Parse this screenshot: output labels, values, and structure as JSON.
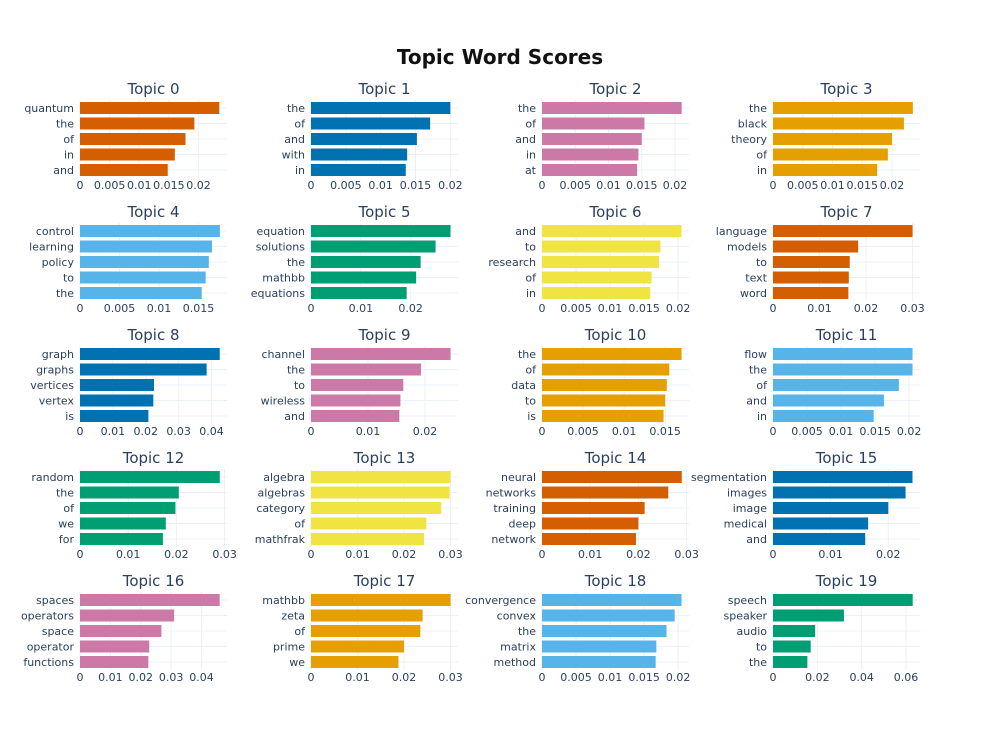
{
  "chart_data": {
    "type": "bar",
    "orientation": "horizontal",
    "title": "Topic Word Scores",
    "grid": true,
    "subplots": [
      {
        "title": "Topic 0",
        "color": "#D55E00",
        "categories": [
          "quantum",
          "the",
          "of",
          "in",
          "and"
        ],
        "values": [
          0.0235,
          0.0193,
          0.0178,
          0.016,
          0.0148
        ],
        "ticks": [
          0,
          0.005,
          0.01,
          0.015,
          0.02
        ],
        "tick_labels": [
          "0",
          "0.005",
          "0.01",
          "0.015",
          "0.02"
        ],
        "xlim": [
          0,
          0.0248
        ]
      },
      {
        "title": "Topic 1",
        "color": "#0072B2",
        "categories": [
          "the",
          "of",
          "and",
          "with",
          "in"
        ],
        "values": [
          0.02,
          0.0171,
          0.0152,
          0.0138,
          0.0136
        ],
        "ticks": [
          0,
          0.005,
          0.01,
          0.015,
          0.02
        ],
        "tick_labels": [
          "0",
          "0.005",
          "0.01",
          "0.015",
          "0.02"
        ],
        "xlim": [
          0,
          0.0211
        ]
      },
      {
        "title": "Topic 2",
        "color": "#CC79A7",
        "categories": [
          "the",
          "of",
          "and",
          "in",
          "at"
        ],
        "values": [
          0.021,
          0.0154,
          0.015,
          0.0145,
          0.0143
        ],
        "ticks": [
          0,
          0.005,
          0.01,
          0.015,
          0.02
        ],
        "tick_labels": [
          "0",
          "0.005",
          "0.01",
          "0.015",
          "0.02"
        ],
        "xlim": [
          0,
          0.0221
        ]
      },
      {
        "title": "Topic 3",
        "color": "#E69F00",
        "categories": [
          "the",
          "black",
          "theory",
          "of",
          "in"
        ],
        "values": [
          0.0235,
          0.022,
          0.02,
          0.0193,
          0.0175
        ],
        "ticks": [
          0,
          0.005,
          0.01,
          0.015,
          0.02
        ],
        "tick_labels": [
          "0",
          "0.005",
          "0.01",
          "0.015",
          "0.02"
        ],
        "xlim": [
          0,
          0.0247
        ]
      },
      {
        "title": "Topic 4",
        "color": "#56B4E9",
        "categories": [
          "control",
          "learning",
          "policy",
          "to",
          "the"
        ],
        "values": [
          0.0177,
          0.0167,
          0.0163,
          0.0159,
          0.0154
        ],
        "ticks": [
          0,
          0.005,
          0.01,
          0.015
        ],
        "tick_labels": [
          "0",
          "0.005",
          "0.01",
          "0.015"
        ],
        "xlim": [
          0,
          0.0186
        ]
      },
      {
        "title": "Topic 5",
        "color": "#009E73",
        "categories": [
          "equation",
          "solutions",
          "the",
          "mathbb",
          "equations"
        ],
        "values": [
          0.028,
          0.025,
          0.022,
          0.0211,
          0.0192
        ],
        "ticks": [
          0,
          0.01,
          0.02
        ],
        "tick_labels": [
          "0",
          "0.01",
          "0.02"
        ],
        "xlim": [
          0,
          0.0295
        ]
      },
      {
        "title": "Topic 6",
        "color": "#F0E442",
        "categories": [
          "and",
          "to",
          "research",
          "of",
          "in"
        ],
        "values": [
          0.0205,
          0.0174,
          0.0172,
          0.0161,
          0.0159
        ],
        "ticks": [
          0,
          0.005,
          0.01,
          0.015,
          0.02
        ],
        "tick_labels": [
          "0",
          "0.005",
          "0.01",
          "0.015",
          "0.02"
        ],
        "xlim": [
          0,
          0.0216
        ]
      },
      {
        "title": "Topic 7",
        "color": "#D55E00",
        "categories": [
          "language",
          "models",
          "to",
          "text",
          "word"
        ],
        "values": [
          0.03,
          0.0183,
          0.0165,
          0.0163,
          0.0162
        ],
        "ticks": [
          0,
          0.01,
          0.02,
          0.03
        ],
        "tick_labels": [
          "0",
          "0.01",
          "0.02",
          "0.03"
        ],
        "xlim": [
          0,
          0.0316
        ]
      },
      {
        "title": "Topic 8",
        "color": "#0072B2",
        "categories": [
          "graph",
          "graphs",
          "vertices",
          "vertex",
          "is"
        ],
        "values": [
          0.0425,
          0.0385,
          0.0225,
          0.0223,
          0.0208
        ],
        "ticks": [
          0,
          0.01,
          0.02,
          0.03,
          0.04
        ],
        "tick_labels": [
          "0",
          "0.01",
          "0.02",
          "0.03",
          "0.04"
        ],
        "xlim": [
          0,
          0.0447
        ]
      },
      {
        "title": "Topic 9",
        "color": "#CC79A7",
        "categories": [
          "channel",
          "the",
          "to",
          "wireless",
          "and"
        ],
        "values": [
          0.0245,
          0.0193,
          0.0162,
          0.0157,
          0.0155
        ],
        "ticks": [
          0,
          0.01,
          0.02
        ],
        "tick_labels": [
          "0",
          "0.01",
          "0.02"
        ],
        "xlim": [
          0,
          0.0258
        ]
      },
      {
        "title": "Topic 10",
        "color": "#E69F00",
        "categories": [
          "the",
          "of",
          "data",
          "to",
          "is"
        ],
        "values": [
          0.017,
          0.0155,
          0.0152,
          0.015,
          0.0148
        ],
        "ticks": [
          0,
          0.005,
          0.01,
          0.015
        ],
        "tick_labels": [
          "0",
          "0.005",
          "0.01",
          "0.015"
        ],
        "xlim": [
          0,
          0.0179
        ]
      },
      {
        "title": "Topic 11",
        "color": "#56B4E9",
        "categories": [
          "flow",
          "the",
          "of",
          "and",
          "in"
        ],
        "values": [
          0.0205,
          0.0205,
          0.0185,
          0.0163,
          0.0148
        ],
        "ticks": [
          0,
          0.005,
          0.01,
          0.015,
          0.02
        ],
        "tick_labels": [
          "0",
          "0.005",
          "0.01",
          "0.015",
          "0.02"
        ],
        "xlim": [
          0,
          0.0216
        ]
      },
      {
        "title": "Topic 12",
        "color": "#009E73",
        "categories": [
          "random",
          "the",
          "of",
          "we",
          "for"
        ],
        "values": [
          0.029,
          0.0205,
          0.0198,
          0.0178,
          0.0172
        ],
        "ticks": [
          0,
          0.01,
          0.02,
          0.03
        ],
        "tick_labels": [
          "0",
          "0.01",
          "0.02",
          "0.03"
        ],
        "xlim": [
          0,
          0.0305
        ]
      },
      {
        "title": "Topic 13",
        "color": "#F0E442",
        "categories": [
          "algebra",
          "algebras",
          "category",
          "of",
          "mathfrak"
        ],
        "values": [
          0.03,
          0.0298,
          0.028,
          0.0248,
          0.0243
        ],
        "ticks": [
          0,
          0.01,
          0.02,
          0.03
        ],
        "tick_labels": [
          "0",
          "0.01",
          "0.02",
          "0.03"
        ],
        "xlim": [
          0,
          0.0316
        ]
      },
      {
        "title": "Topic 14",
        "color": "#D55E00",
        "categories": [
          "neural",
          "networks",
          "training",
          "deep",
          "network"
        ],
        "values": [
          0.029,
          0.0262,
          0.0213,
          0.02,
          0.0195
        ],
        "ticks": [
          0,
          0.01,
          0.02,
          0.03
        ],
        "tick_labels": [
          "0",
          "0.01",
          "0.02",
          "0.03"
        ],
        "xlim": [
          0,
          0.0305
        ]
      },
      {
        "title": "Topic 15",
        "color": "#0072B2",
        "categories": [
          "segmentation",
          "images",
          "image",
          "medical",
          "and"
        ],
        "values": [
          0.0242,
          0.023,
          0.02,
          0.0165,
          0.016
        ],
        "ticks": [
          0,
          0.01,
          0.02
        ],
        "tick_labels": [
          "0",
          "0.01",
          "0.02"
        ],
        "xlim": [
          0,
          0.0255
        ]
      },
      {
        "title": "Topic 16",
        "color": "#CC79A7",
        "categories": [
          "spaces",
          "operators",
          "space",
          "operator",
          "functions"
        ],
        "values": [
          0.046,
          0.031,
          0.0268,
          0.0228,
          0.0225
        ],
        "ticks": [
          0,
          0.01,
          0.02,
          0.03,
          0.04
        ],
        "tick_labels": [
          "0",
          "0.01",
          "0.02",
          "0.03",
          "0.04"
        ],
        "xlim": [
          0,
          0.0484
        ]
      },
      {
        "title": "Topic 17",
        "color": "#E69F00",
        "categories": [
          "mathbb",
          "zeta",
          "of",
          "prime",
          "we"
        ],
        "values": [
          0.03,
          0.024,
          0.0235,
          0.02,
          0.0188
        ],
        "ticks": [
          0,
          0.01,
          0.02,
          0.03
        ],
        "tick_labels": [
          "0",
          "0.01",
          "0.02",
          "0.03"
        ],
        "xlim": [
          0,
          0.0316
        ]
      },
      {
        "title": "Topic 18",
        "color": "#56B4E9",
        "categories": [
          "convergence",
          "convex",
          "the",
          "matrix",
          "method"
        ],
        "values": [
          0.0205,
          0.0195,
          0.0183,
          0.0168,
          0.0167
        ],
        "ticks": [
          0,
          0.005,
          0.01,
          0.015,
          0.02
        ],
        "tick_labels": [
          "0",
          "0.005",
          "0.01",
          "0.015",
          "0.02"
        ],
        "xlim": [
          0,
          0.0216
        ]
      },
      {
        "title": "Topic 19",
        "color": "#009E73",
        "categories": [
          "speech",
          "speaker",
          "audio",
          "to",
          "the"
        ],
        "values": [
          0.063,
          0.032,
          0.019,
          0.017,
          0.0155
        ],
        "ticks": [
          0,
          0.02,
          0.04,
          0.06
        ],
        "tick_labels": [
          "0",
          "0.02",
          "0.04",
          "0.06"
        ],
        "xlim": [
          0,
          0.0663
        ]
      }
    ]
  }
}
